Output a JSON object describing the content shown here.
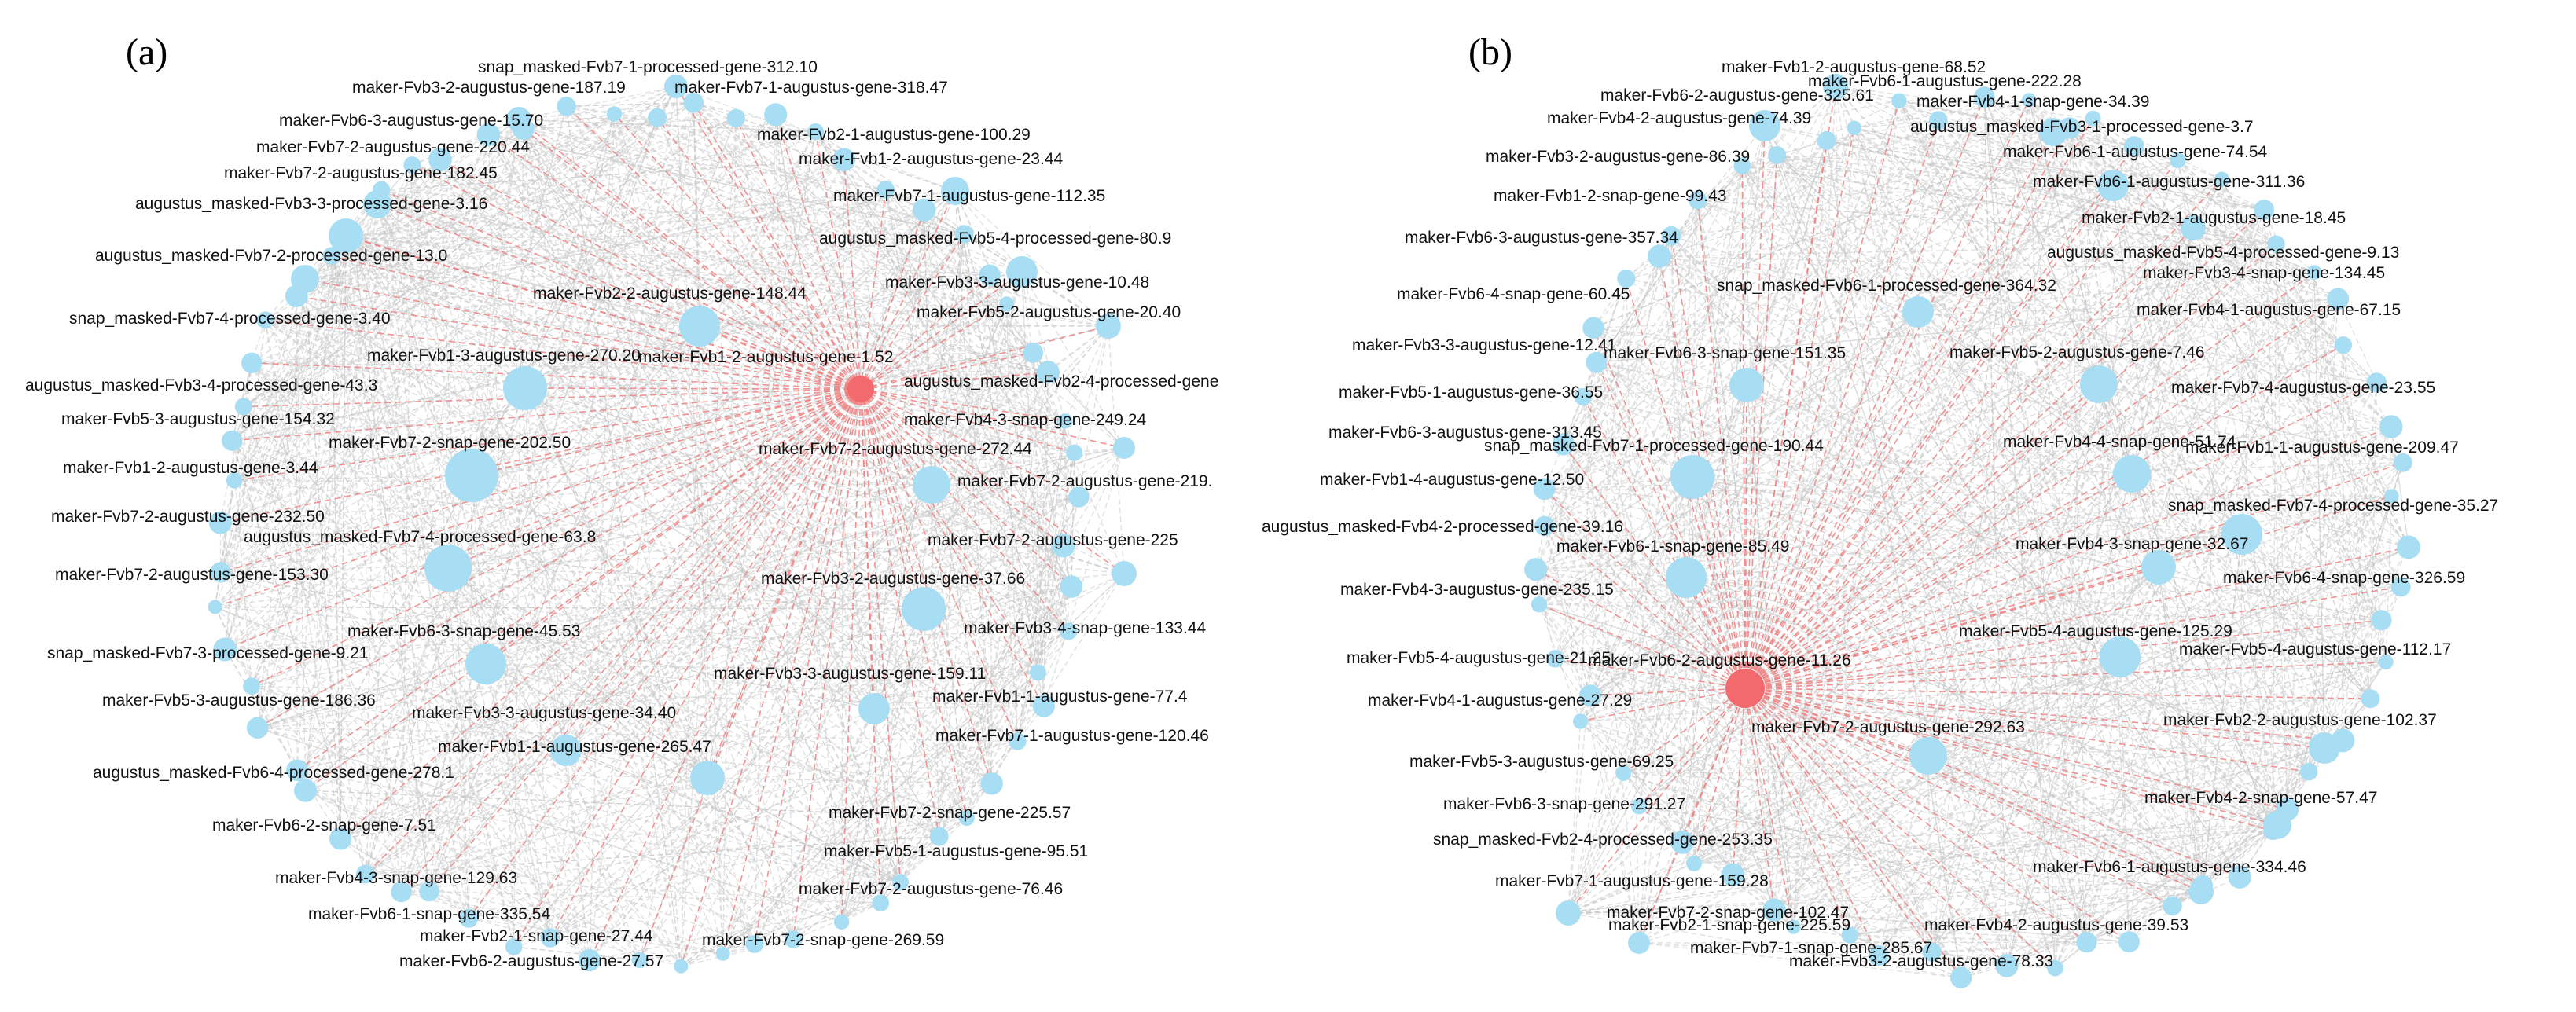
{
  "colors": {
    "hub": "#f26a6e",
    "node": "#a8def4",
    "hub_edge": "#f08080",
    "edge": "#c8c8c8",
    "text": "#111111"
  },
  "panels": [
    {
      "letter": "(a)",
      "hub_label": "maker-Fvb1-2-augustus-gene-1.52",
      "labels": [
        "snap_masked-Fvb7-1-processed-gene-312.10",
        "maker-Fvb3-2-augustus-gene-187.19",
        "maker-Fvb7-1-augustus-gene-318.47",
        "maker-Fvb6-3-augustus-gene-15.70",
        "maker-Fvb2-1-augustus-gene-100.29",
        "maker-Fvb7-2-augustus-gene-220.44",
        "maker-Fvb1-2-augustus-gene-23.44",
        "maker-Fvb7-2-augustus-gene-182.45",
        "maker-Fvb7-1-augustus-gene-112.35",
        "augustus_masked-Fvb3-3-processed-gene-3.16",
        "augustus_masked-Fvb5-4-processed-gene-80.9",
        "augustus_masked-Fvb7-2-processed-gene-13.0",
        "maker-Fvb3-3-augustus-gene-10.48",
        "maker-Fvb2-2-augustus-gene-148.44",
        "maker-Fvb5-2-augustus-gene-20.40",
        "snap_masked-Fvb7-4-processed-gene-3.40",
        "maker-Fvb1-3-augustus-gene-270.20",
        "augustus_masked-Fvb3-4-processed-gene-43.3",
        "augustus_masked-Fvb2-4-processed-gene",
        "maker-Fvb5-3-augustus-gene-154.32",
        "maker-Fvb4-3-snap-gene-249.24",
        "maker-Fvb7-2-snap-gene-202.50",
        "maker-Fvb7-2-augustus-gene-272.44",
        "maker-Fvb1-2-augustus-gene-3.44",
        "maker-Fvb7-2-augustus-gene-219.",
        "maker-Fvb7-2-augustus-gene-232.50",
        "augustus_masked-Fvb7-4-processed-gene-63.8",
        "maker-Fvb7-2-augustus-gene-225",
        "maker-Fvb7-2-augustus-gene-153.30",
        "maker-Fvb3-2-augustus-gene-37.66",
        "maker-Fvb3-4-snap-gene-133.44",
        "maker-Fvb6-3-snap-gene-45.53",
        "snap_masked-Fvb7-3-processed-gene-9.21",
        "maker-Fvb3-3-augustus-gene-159.11",
        "maker-Fvb5-3-augustus-gene-186.36",
        "maker-Fvb1-1-augustus-gene-77.4",
        "maker-Fvb3-3-augustus-gene-34.40",
        "maker-Fvb7-1-augustus-gene-120.46",
        "maker-Fvb1-1-augustus-gene-265.47",
        "augustus_masked-Fvb6-4-processed-gene-278.1",
        "maker-Fvb7-2-snap-gene-225.57",
        "maker-Fvb6-2-snap-gene-7.51",
        "maker-Fvb5-1-augustus-gene-95.51",
        "maker-Fvb4-3-snap-gene-129.63",
        "maker-Fvb7-2-augustus-gene-76.46",
        "maker-Fvb6-1-snap-gene-335.54",
        "maker-Fvb2-1-snap-gene-27.44",
        "maker-Fvb7-2-snap-gene-269.59",
        "maker-Fvb6-2-augustus-gene-27.57"
      ]
    },
    {
      "letter": "(b)",
      "hub_label": "maker-Fvb6-2-augustus-gene-11.26",
      "labels": [
        "maker-Fvb1-2-augustus-gene-68.52",
        "maker-Fvb6-1-augustus-gene-222.28",
        "maker-Fvb6-2-augustus-gene-325.61",
        "maker-Fvb4-1-snap-gene-34.39",
        "maker-Fvb4-2-augustus-gene-74.39",
        "augustus_masked-Fvb3-1-processed-gene-3.7",
        "maker-Fvb6-1-augustus-gene-74.54",
        "maker-Fvb3-2-augustus-gene-86.39",
        "maker-Fvb6-1-augustus-gene-311.36",
        "maker-Fvb1-2-snap-gene-99.43",
        "maker-Fvb2-1-augustus-gene-18.45",
        "maker-Fvb6-3-augustus-gene-357.34",
        "augustus_masked-Fvb5-4-processed-gene-9.13",
        "snap_masked-Fvb6-1-processed-gene-364.32",
        "maker-Fvb3-4-snap-gene-134.45",
        "maker-Fvb6-4-snap-gene-60.45",
        "maker-Fvb4-1-augustus-gene-67.15",
        "maker-Fvb3-3-augustus-gene-12.41",
        "maker-Fvb5-2-augustus-gene-7.46",
        "maker-Fvb6-3-snap-gene-151.35",
        "maker-Fvb5-1-augustus-gene-36.55",
        "maker-Fvb7-4-augustus-gene-23.55",
        "maker-Fvb6-3-augustus-gene-313.45",
        "maker-Fvb4-4-snap-gene-51.74",
        "maker-Fvb1-1-augustus-gene-209.47",
        "snap_masked-Fvb7-1-processed-gene-190.44",
        "maker-Fvb1-4-augustus-gene-12.50",
        "snap_masked-Fvb7-4-processed-gene-35.27",
        "augustus_masked-Fvb4-2-processed-gene-39.16",
        "maker-Fvb6-1-snap-gene-85.49",
        "maker-Fvb4-3-snap-gene-32.67",
        "maker-Fvb6-4-snap-gene-326.59",
        "maker-Fvb4-3-augustus-gene-235.15",
        "maker-Fvb5-4-augustus-gene-125.29",
        "maker-Fvb5-4-augustus-gene-21.25",
        "maker-Fvb5-4-augustus-gene-112.17",
        "maker-Fvb4-1-augustus-gene-27.29",
        "maker-Fvb2-2-augustus-gene-102.37",
        "maker-Fvb7-2-augustus-gene-292.63",
        "maker-Fvb5-3-augustus-gene-69.25",
        "maker-Fvb4-2-snap-gene-57.47",
        "maker-Fvb6-3-snap-gene-291.27",
        "snap_masked-Fvb2-4-processed-gene-253.35",
        "maker-Fvb6-1-augustus-gene-334.46",
        "maker-Fvb7-1-augustus-gene-159.28",
        "maker-Fvb7-2-snap-gene-102.47",
        "maker-Fvb2-1-snap-gene-225.59",
        "maker-Fvb4-2-augustus-gene-39.53",
        "maker-Fvb7-1-snap-gene-285.67",
        "maker-Fvb3-2-augustus-gene-78.33"
      ]
    }
  ]
}
